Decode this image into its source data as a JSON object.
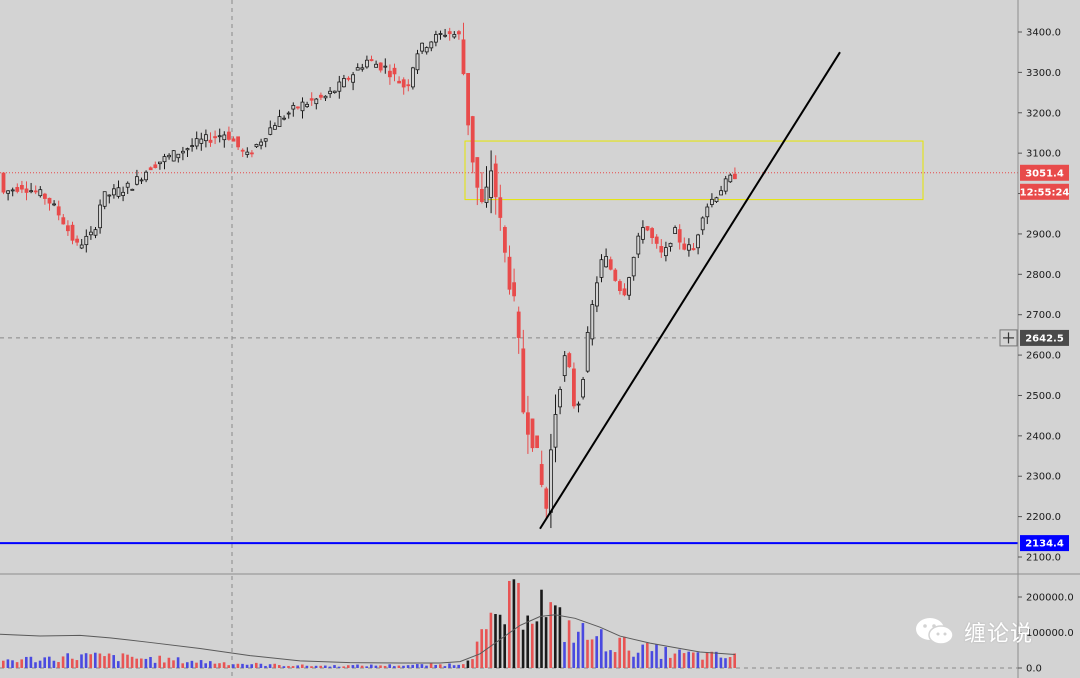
{
  "chart_data": {
    "type": "candlestick",
    "price_axis": {
      "ticks": [
        "3400.0",
        "3300.0",
        "3200.0",
        "3100.0",
        "3000.0",
        "2900.0",
        "2800.0",
        "2700.0",
        "2600.0",
        "2500.0",
        "2400.0",
        "2300.0",
        "2200.0",
        "2100.0"
      ],
      "range": [
        2080,
        3460
      ]
    },
    "volume_axis": {
      "ticks": [
        "200000.0",
        "100000.0",
        "0.0"
      ],
      "range": [
        0,
        230000
      ]
    },
    "tags": {
      "last_price": "3051.4",
      "countdown": "12:55:24",
      "crosshair_price": "2642.5",
      "support_level": "2134.4"
    },
    "support_line": 2134.4,
    "last_price_value": 3051.4,
    "crosshair_value": 2642.5,
    "resistance_zone": {
      "low": 2985,
      "high": 3130
    },
    "trendline": {
      "from": 2170,
      "to": 3350
    },
    "price_path": [
      [
        0,
        3000
      ],
      [
        20,
        3020
      ],
      [
        45,
        2990
      ],
      [
        60,
        2940
      ],
      [
        75,
        2870
      ],
      [
        92,
        2900
      ],
      [
        100,
        2990
      ],
      [
        130,
        3020
      ],
      [
        150,
        3070
      ],
      [
        175,
        3100
      ],
      [
        200,
        3130
      ],
      [
        225,
        3150
      ],
      [
        245,
        3090
      ],
      [
        275,
        3180
      ],
      [
        300,
        3220
      ],
      [
        325,
        3240
      ],
      [
        340,
        3270
      ],
      [
        365,
        3330
      ],
      [
        385,
        3310
      ],
      [
        405,
        3260
      ],
      [
        415,
        3350
      ],
      [
        430,
        3380
      ],
      [
        445,
        3400
      ],
      [
        458,
        3390
      ],
      [
        462,
        3300
      ],
      [
        468,
        3150
      ],
      [
        475,
        3020
      ],
      [
        482,
        2950
      ],
      [
        490,
        3070
      ],
      [
        497,
        2950
      ],
      [
        503,
        2850
      ],
      [
        509,
        2780
      ],
      [
        516,
        2650
      ],
      [
        522,
        2460
      ],
      [
        530,
        2420
      ],
      [
        538,
        2300
      ],
      [
        545,
        2220
      ],
      [
        550,
        2380
      ],
      [
        556,
        2510
      ],
      [
        562,
        2600
      ],
      [
        568,
        2560
      ],
      [
        574,
        2450
      ],
      [
        580,
        2520
      ],
      [
        588,
        2680
      ],
      [
        595,
        2780
      ],
      [
        602,
        2850
      ],
      [
        612,
        2800
      ],
      [
        622,
        2750
      ],
      [
        632,
        2840
      ],
      [
        642,
        2930
      ],
      [
        652,
        2880
      ],
      [
        662,
        2840
      ],
      [
        672,
        2910
      ],
      [
        682,
        2870
      ],
      [
        692,
        2860
      ],
      [
        702,
        2960
      ],
      [
        712,
        2990
      ],
      [
        722,
        3020
      ],
      [
        735,
        3051
      ]
    ],
    "volume_path": [
      [
        0,
        22000
      ],
      [
        40,
        26000
      ],
      [
        80,
        34000
      ],
      [
        120,
        30000
      ],
      [
        160,
        24000
      ],
      [
        200,
        18000
      ],
      [
        240,
        12000
      ],
      [
        280,
        8000
      ],
      [
        320,
        6000
      ],
      [
        360,
        7000
      ],
      [
        400,
        8000
      ],
      [
        440,
        9000
      ],
      [
        460,
        12000
      ],
      [
        470,
        40000
      ],
      [
        480,
        80000
      ],
      [
        490,
        110000
      ],
      [
        500,
        150000
      ],
      [
        510,
        175000
      ],
      [
        520,
        185000
      ],
      [
        530,
        195000
      ],
      [
        540,
        180000
      ],
      [
        550,
        150000
      ],
      [
        560,
        120000
      ],
      [
        580,
        95000
      ],
      [
        600,
        80000
      ],
      [
        620,
        65000
      ],
      [
        640,
        52000
      ],
      [
        660,
        45000
      ],
      [
        680,
        38000
      ],
      [
        700,
        35000
      ],
      [
        720,
        32000
      ],
      [
        735,
        30000
      ]
    ],
    "volume_ma_path": [
      [
        0,
        95000
      ],
      [
        40,
        90000
      ],
      [
        80,
        92000
      ],
      [
        110,
        85000
      ],
      [
        150,
        72000
      ],
      [
        200,
        55000
      ],
      [
        250,
        35000
      ],
      [
        300,
        20000
      ],
      [
        350,
        15000
      ],
      [
        400,
        14000
      ],
      [
        440,
        14000
      ],
      [
        460,
        18000
      ],
      [
        480,
        40000
      ],
      [
        500,
        80000
      ],
      [
        520,
        120000
      ],
      [
        540,
        145000
      ],
      [
        555,
        150000
      ],
      [
        575,
        140000
      ],
      [
        600,
        115000
      ],
      [
        620,
        90000
      ],
      [
        650,
        70000
      ],
      [
        680,
        55000
      ],
      [
        700,
        45000
      ],
      [
        735,
        38000
      ]
    ]
  },
  "watermark": {
    "text": "缠论说"
  },
  "colors": {
    "up": "#1a1a1a",
    "down": "#e84b4b",
    "vol_up": "#4a4ae0",
    "vol_down": "#e85454",
    "support": "#0000ff",
    "zone": "#e6e600"
  }
}
